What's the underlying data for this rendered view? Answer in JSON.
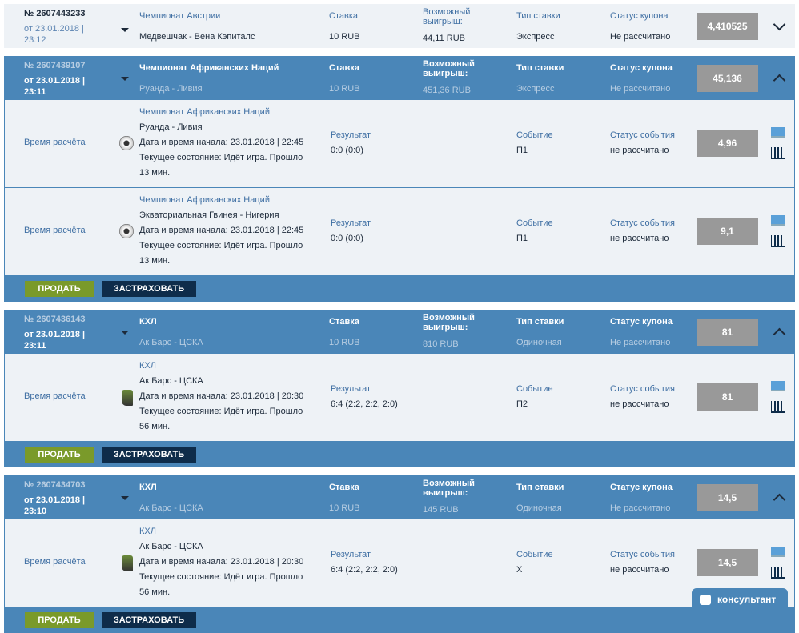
{
  "labels": {
    "stake": "Ставка",
    "possible_win": "Возможный выигрыш:",
    "bet_type": "Тип ставки",
    "coupon_status": "Статус купона",
    "calc_time": "Время расчёта",
    "result": "Результат",
    "event": "Событие",
    "event_status": "Статус события",
    "start_prefix": "Дата и время начала: ",
    "state_prefix": "Текущее состояние: ",
    "sell": "ПРОДАТЬ",
    "insure": "ЗАСТРАХОВАТЬ"
  },
  "coupons": [
    {
      "number": "№ 2607443233",
      "date": "от 23.01.2018 | 23:12",
      "league": "Чемпионат Австрии",
      "match": "Медвешчак - Вена Кэпиталс",
      "stake": "10 RUB",
      "win": "44,11 RUB",
      "type": "Экспресс",
      "status": "Не рассчитано",
      "coef": "4,410525",
      "expanded": false,
      "events": []
    },
    {
      "number": "№ 2607439107",
      "date": "от 23.01.2018 | 23:11",
      "league": "Чемпионат Африканских Наций",
      "match": "Руанда - Ливия",
      "stake": "10 RUB",
      "win": "451,36 RUB",
      "type": "Экспресс",
      "status": "Не рассчитано",
      "coef": "45,136",
      "expanded": true,
      "events": [
        {
          "sport_icon": "soccer-ball-icon",
          "league": "Чемпионат Африканских Наций",
          "match": "Руанда - Ливия",
          "start": "23.01.2018 | 22:45",
          "state": "Идёт игра. Прошло",
          "state2": "13 мин.",
          "result": "0:0 (0:0)",
          "event": "П1",
          "event_status": "не рассчитано",
          "coef": "4,96"
        },
        {
          "sport_icon": "soccer-ball-icon",
          "league": "Чемпионат Африканских Наций",
          "match": "Экваториальная Гвинея - Нигерия",
          "start": "23.01.2018 | 22:45",
          "state": "Идёт игра. Прошло",
          "state2": "13 мин.",
          "result": "0:0 (0:0)",
          "event": "П1",
          "event_status": "не рассчитано",
          "coef": "9,1"
        }
      ]
    },
    {
      "number": "№ 2607436143",
      "date": "от 23.01.2018 | 23:11",
      "league": "КХЛ",
      "match": "Ак Барс - ЦСКА",
      "stake": "10 RUB",
      "win": "810 RUB",
      "type": "Одиночная",
      "status": "Не рассчитано",
      "coef": "81",
      "expanded": true,
      "events": [
        {
          "sport_icon": "hockey-skate-icon",
          "league": "КХЛ",
          "match": "Ак Барс - ЦСКА",
          "start": "23.01.2018 | 20:30",
          "state": "Идёт игра. Прошло",
          "state2": "56 мин.",
          "result": "6:4 (2:2, 2:2, 2:0)",
          "event": "П2",
          "event_status": "не рассчитано",
          "coef": "81"
        }
      ]
    },
    {
      "number": "№ 2607434703",
      "date": "от 23.01.2018 | 23:10",
      "league": "КХЛ",
      "match": "Ак Барс - ЦСКА",
      "stake": "10 RUB",
      "win": "145 RUB",
      "type": "Одиночная",
      "status": "Не рассчитано",
      "coef": "14,5",
      "expanded": true,
      "events": [
        {
          "sport_icon": "hockey-skate-icon",
          "league": "КХЛ",
          "match": "Ак Барс - ЦСКА",
          "start": "23.01.2018 | 20:30",
          "state": "Идёт игра. Прошло",
          "state2": "56 мин.",
          "result": "6:4 (2:2, 2:2, 2:0)",
          "event": "X",
          "event_status": "не рассчитано",
          "coef": "14,5"
        }
      ]
    }
  ],
  "consultant": "консультант",
  "colors": {
    "header_active": "#4a86b8",
    "row_bg": "#eef2f6",
    "coef_box": "#999999",
    "sell": "#7a9a2a",
    "insure": "#0e2c4a"
  }
}
